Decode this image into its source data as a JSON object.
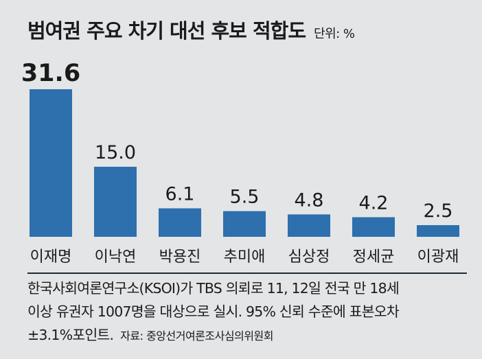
{
  "title": "범여권 주요 차기 대선 후보 적합도",
  "unit": "단위: %",
  "chart_data": {
    "type": "bar",
    "title": "범여권 주요 차기 대선 후보 적합도",
    "unit": "%",
    "categories": [
      "이재명",
      "이낙연",
      "박용진",
      "추미애",
      "심상정",
      "정세균",
      "이광재"
    ],
    "values": [
      31.6,
      15.0,
      6.1,
      5.5,
      4.8,
      4.2,
      2.5
    ],
    "value_labels": [
      "31.6",
      "15.0",
      "6.1",
      "5.5",
      "4.8",
      "4.2",
      "2.5"
    ],
    "bar_color": "#2e6fad",
    "grid": false
  },
  "footnote": {
    "line1": "한국사회여론연구소(KSOI)가 TBS 의뢰로 11, 12일 전국 만 18세",
    "line2": "이상 유권자 1007명을 대상으로 실시. 95% 신뢰 수준에 표본오차",
    "line3": "±3.1%포인트.",
    "source": "자료: 중앙선거여론조사심의위원회"
  }
}
